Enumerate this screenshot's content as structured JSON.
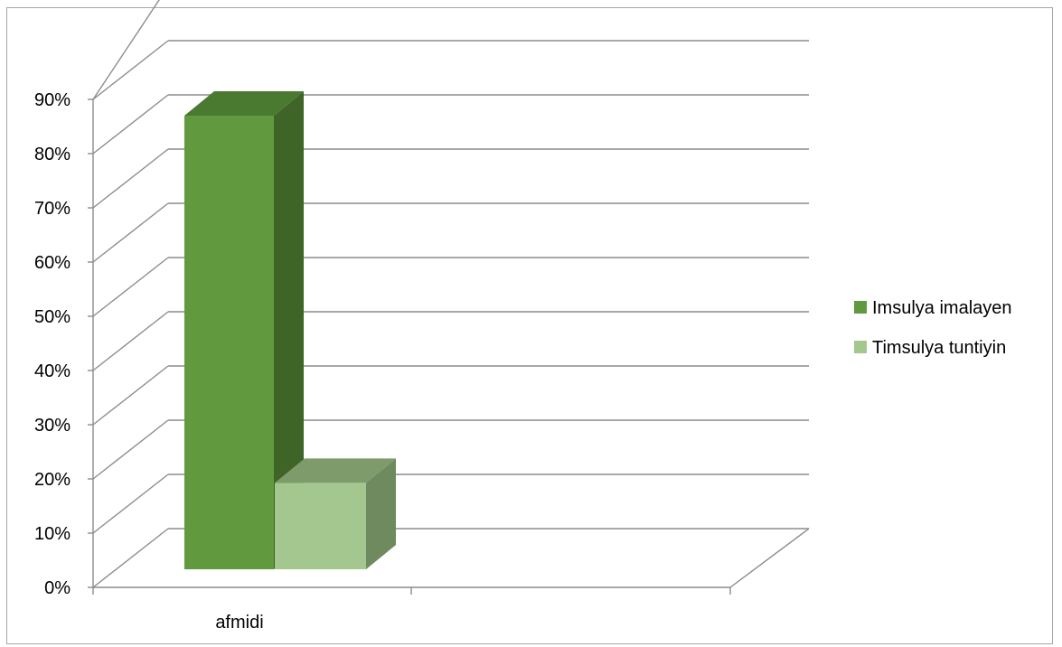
{
  "chart_data": {
    "type": "bar",
    "style": "3d-column",
    "title": "",
    "xlabel": "",
    "ylabel": "",
    "categories": [
      "afmidi"
    ],
    "series": [
      {
        "name": "Imsulya imalayen",
        "values": [
          0.84
        ],
        "color": "#619a3e"
      },
      {
        "name": "Timsulya tuntiyin",
        "values": [
          0.16
        ],
        "color": "#a3c78e"
      }
    ],
    "ylim": [
      0,
      0.9
    ],
    "y_ticks": [
      "0%",
      "10%",
      "20%",
      "30%",
      "40%",
      "50%",
      "60%",
      "70%",
      "80%",
      "90%"
    ],
    "y_format": "percent",
    "grid": true,
    "legend_position": "right"
  },
  "colors": {
    "gridline": "#8c8c8c",
    "frame_border": "#a6a6a6",
    "series1_front": "#619a3e",
    "series1_side": "#3f6428",
    "series1_top": "#4a7a30",
    "series2_front": "#a3c78e",
    "series2_side": "#6e8a5e",
    "series2_top": "#7e9b6c"
  }
}
